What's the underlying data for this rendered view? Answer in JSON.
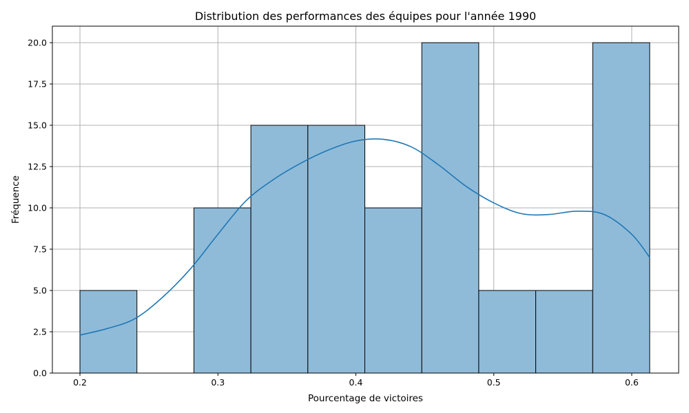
{
  "chart_data": {
    "type": "bar",
    "title": "Distribution des performances des équipes pour l'année 1990",
    "xlabel": "Pourcentage de victoires",
    "ylabel": "Fréquence",
    "xlim": [
      0.18,
      0.634
    ],
    "ylim": [
      0,
      21
    ],
    "xticks": [
      0.2,
      0.3,
      0.4,
      0.5,
      0.6
    ],
    "xtick_labels": [
      "0.2",
      "0.3",
      "0.4",
      "0.5",
      "0.6"
    ],
    "yticks": [
      0,
      2.5,
      5,
      7.5,
      10,
      12.5,
      15,
      17.5,
      20
    ],
    "ytick_labels": [
      "0.0",
      "2.5",
      "5.0",
      "7.5",
      "10.0",
      "12.5",
      "15.0",
      "17.5",
      "20.0"
    ],
    "grid": true,
    "bins": [
      {
        "x0": 0.2,
        "x1": 0.2413,
        "count": 5
      },
      {
        "x0": 0.2413,
        "x1": 0.2826,
        "count": 0
      },
      {
        "x0": 0.2826,
        "x1": 0.3239,
        "count": 10
      },
      {
        "x0": 0.3239,
        "x1": 0.3652,
        "count": 15
      },
      {
        "x0": 0.3652,
        "x1": 0.4065,
        "count": 15
      },
      {
        "x0": 0.4065,
        "x1": 0.4478,
        "count": 10
      },
      {
        "x0": 0.4478,
        "x1": 0.4891,
        "count": 20
      },
      {
        "x0": 0.4891,
        "x1": 0.5304,
        "count": 5
      },
      {
        "x0": 0.5304,
        "x1": 0.5717,
        "count": 5
      },
      {
        "x0": 0.5717,
        "x1": 0.613,
        "count": 20
      }
    ],
    "kde": {
      "x": [
        0.2,
        0.22,
        0.24,
        0.26,
        0.28,
        0.3,
        0.32,
        0.34,
        0.36,
        0.38,
        0.4,
        0.42,
        0.44,
        0.46,
        0.48,
        0.5,
        0.52,
        0.54,
        0.56,
        0.58,
        0.6,
        0.613
      ],
      "y": [
        2.3,
        2.7,
        3.3,
        4.6,
        6.3,
        8.4,
        10.4,
        11.7,
        12.7,
        13.5,
        14.05,
        14.15,
        13.7,
        12.6,
        11.3,
        10.3,
        9.65,
        9.6,
        9.8,
        9.6,
        8.4,
        7.0
      ]
    },
    "colors": {
      "bar_fill": "#8fbbd9",
      "bar_edge": "#000000",
      "kde_line": "#1f77b4",
      "grid": "#b0b0b0",
      "axes": "#000000"
    }
  }
}
